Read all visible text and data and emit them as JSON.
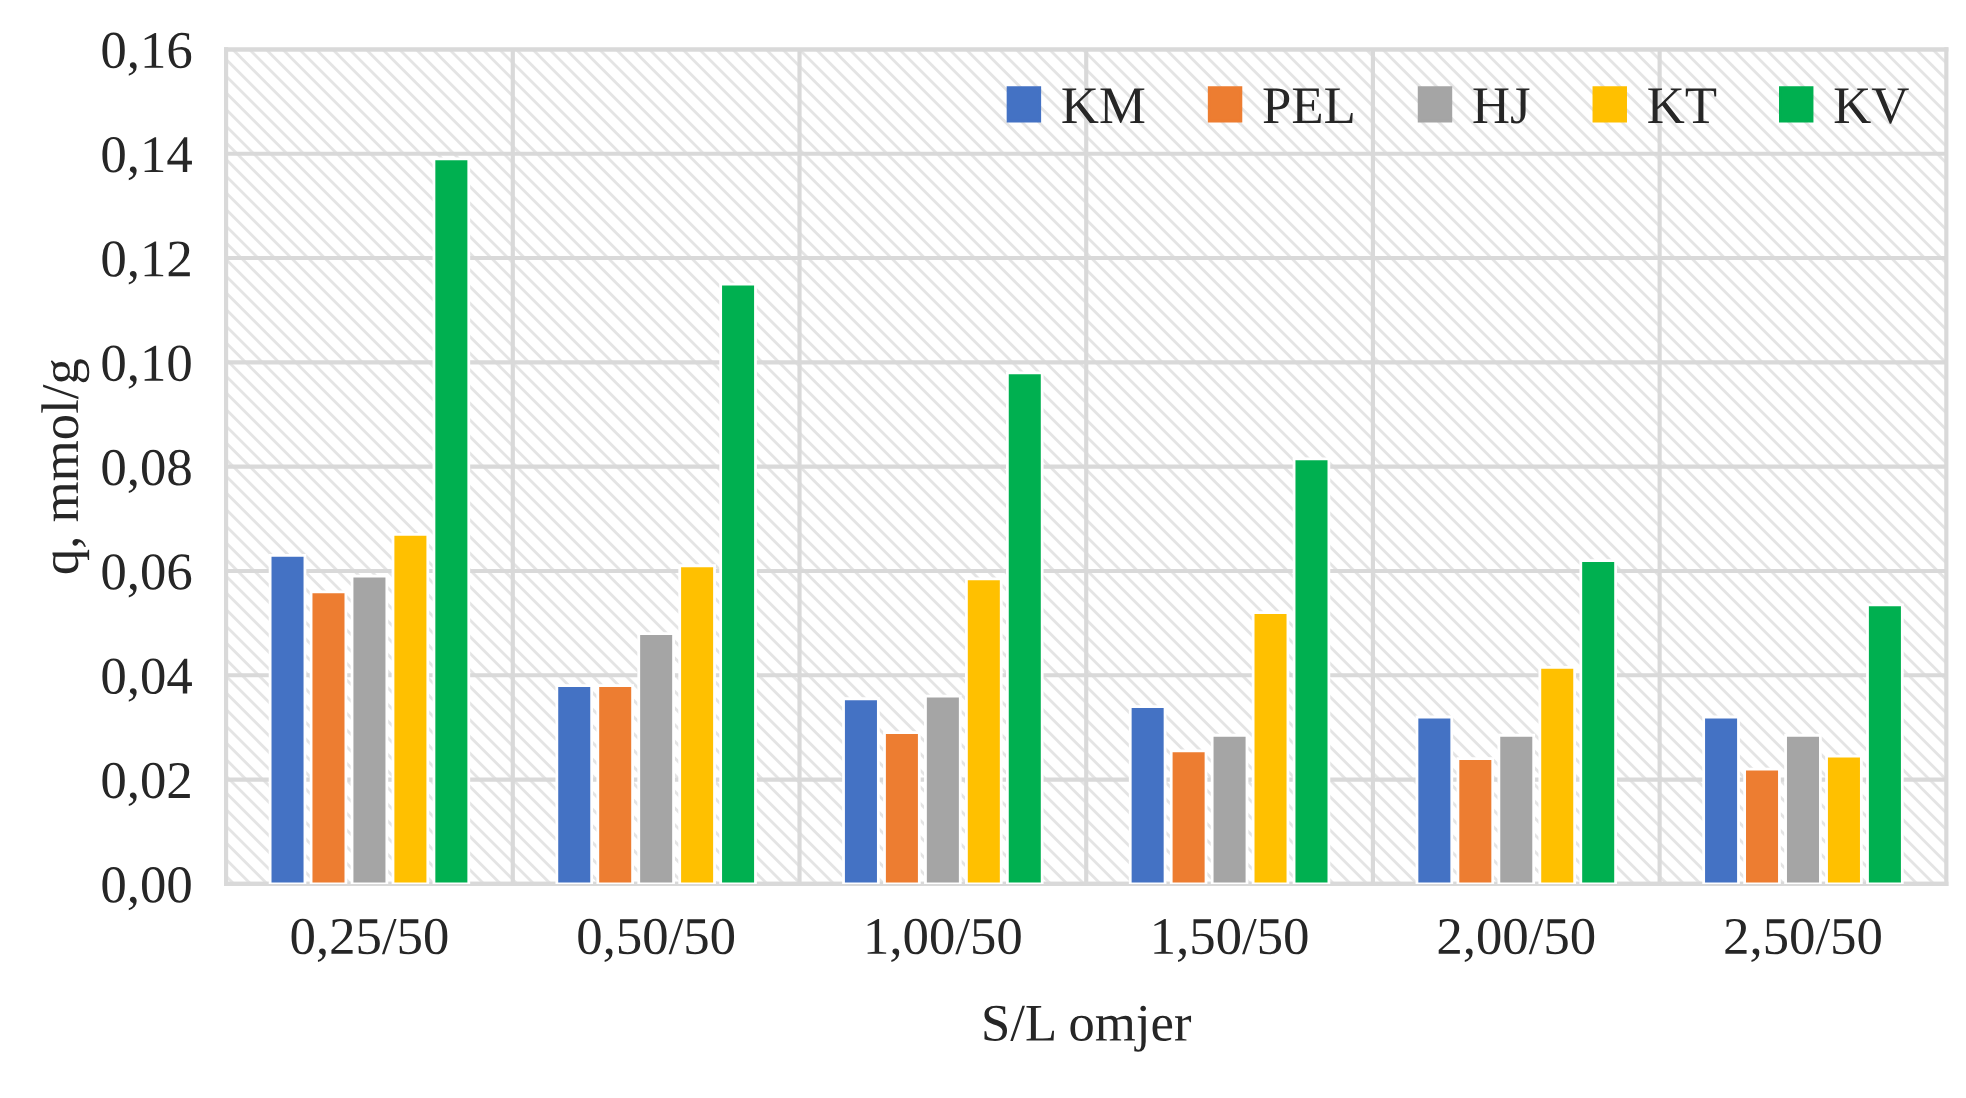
{
  "chart_data": {
    "type": "bar",
    "xlabel": "S/L omjer",
    "ylabel": "q, mmol/g",
    "categories": [
      "0,25/50",
      "0,50/50",
      "1,00/50",
      "1,50/50",
      "2,00/50",
      "2,50/50"
    ],
    "series": [
      {
        "name": "KM",
        "color": "#4472c4",
        "values": [
          0.063,
          0.038,
          0.0355,
          0.034,
          0.032,
          0.032
        ]
      },
      {
        "name": "PEL",
        "color": "#ed7d31",
        "values": [
          0.056,
          0.038,
          0.029,
          0.0255,
          0.024,
          0.022
        ]
      },
      {
        "name": "HJ",
        "color": "#a5a5a5",
        "values": [
          0.059,
          0.048,
          0.036,
          0.0285,
          0.0285,
          0.0285
        ]
      },
      {
        "name": "KT",
        "color": "#ffc000",
        "values": [
          0.067,
          0.061,
          0.0585,
          0.052,
          0.0415,
          0.0245
        ]
      },
      {
        "name": "KV",
        "color": "#00b050",
        "values": [
          0.139,
          0.115,
          0.098,
          0.0815,
          0.062,
          0.0535
        ]
      }
    ],
    "ylim": [
      0,
      0.16
    ],
    "yticks": [
      {
        "value": 0,
        "label": "0,00"
      },
      {
        "value": 0.02,
        "label": "0,02"
      },
      {
        "value": 0.04,
        "label": "0,04"
      },
      {
        "value": 0.06,
        "label": "0,06"
      },
      {
        "value": 0.08,
        "label": "0,08"
      },
      {
        "value": 0.1,
        "label": "0,10"
      },
      {
        "value": 0.12,
        "label": "0,12"
      },
      {
        "value": 0.14,
        "label": "0,14"
      },
      {
        "value": 0.16,
        "label": "0,16"
      }
    ],
    "grid": true,
    "legend": "top right"
  }
}
